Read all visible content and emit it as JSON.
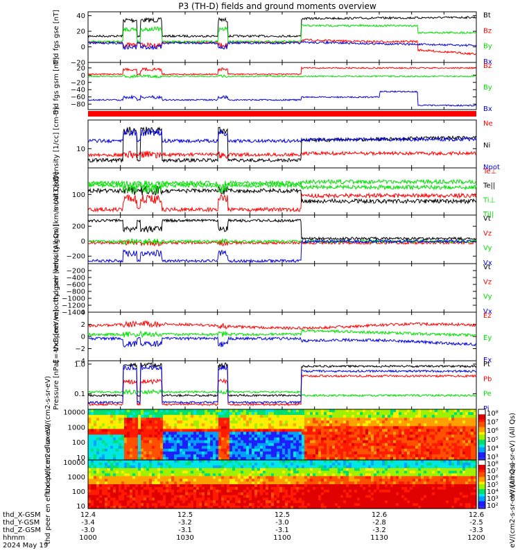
{
  "title": "P3 (TH-D) fields and ground moments overview",
  "colors": {
    "black": "#000000",
    "red": "#ff0000",
    "green": "#00e000",
    "blue": "#0000e0",
    "cyan": "#00ffff"
  },
  "footer": {
    "row_labels": [
      "thd_X-GSM",
      "thd_Y-GSM",
      "thd_Z-GSM",
      "hhmm",
      "2024 May 19"
    ],
    "columns": [
      {
        "x": "12.4",
        "y": "-3.4",
        "z": "-3.0",
        "hhmm": "1000"
      },
      {
        "x": "12.5",
        "y": "-3.2",
        "z": "-3.1",
        "hhmm": "1030"
      },
      {
        "x": "12.5",
        "y": "-3.0",
        "z": "-3.1",
        "hhmm": "1100"
      },
      {
        "x": "12.6",
        "y": "-2.8",
        "z": "-3.2",
        "hhmm": "1130"
      },
      {
        "x": "12.6",
        "y": "-2.5",
        "z": "-3.3",
        "hhmm": "1200"
      }
    ]
  },
  "chart_data": [
    {
      "type": "line",
      "ylabel": "thd fgs gse [nT]",
      "ylim": [
        -20,
        45
      ],
      "ticks": [
        "40",
        "20",
        "0",
        "−20"
      ],
      "tick_values": [
        40,
        20,
        0,
        -20
      ],
      "series": [
        {
          "name": "Bt",
          "color": "#000000"
        },
        {
          "name": "Bz",
          "color": "#ff0000"
        },
        {
          "name": "By",
          "color": "#00e000"
        },
        {
          "name": "Bx",
          "color": "#0000e0"
        }
      ]
    },
    {
      "type": "line",
      "ylabel": "thd fgs gsm [nT]",
      "ylim": [
        -95,
        35
      ],
      "ticks": [
        "20",
        "0",
        "−20",
        "−40",
        "−60",
        "−80"
      ],
      "tick_values": [
        20,
        0,
        -20,
        -40,
        -60,
        -80
      ],
      "series": [
        {
          "name": "Bz",
          "color": "#ff0000"
        },
        {
          "name": "By",
          "color": "#00e000"
        },
        {
          "name": "Bx",
          "color": "#0000e0"
        }
      ]
    },
    {
      "type": "line",
      "ylabel": "Density [1/cc] [cm-3]",
      "log": true,
      "ticks": [
        "10"
      ],
      "tick_values": [
        10
      ],
      "series": [
        {
          "name": "Ne",
          "color": "#ff0000"
        },
        {
          "name": "Ni",
          "color": "#000000"
        },
        {
          "name": "Npot",
          "color": "#0000e0"
        }
      ]
    },
    {
      "type": "line",
      "ylabel": "moat3 [eV]",
      "log": true,
      "ticks": [
        "100"
      ],
      "tick_values": [
        100
      ],
      "series": [
        {
          "name": "Te⊥",
          "color": "#ff0000"
        },
        {
          "name": "Te||",
          "color": "#000000"
        },
        {
          "name": "Ti⊥",
          "color": "#00e000"
        },
        {
          "name": "Ti||",
          "color": "#00e000"
        }
      ]
    },
    {
      "type": "line",
      "ylabel": "thd peir velocity gsm [km/s (All Qs)]",
      "ylim": [
        -300,
        350
      ],
      "ticks": [
        "200",
        "0",
        "−200"
      ],
      "tick_values": [
        200,
        0,
        -200
      ],
      "series": [
        {
          "name": "Vt",
          "color": "#000000"
        },
        {
          "name": "Vz",
          "color": "#ff0000"
        },
        {
          "name": "Vy",
          "color": "#00e000"
        },
        {
          "name": "Vx",
          "color": "#0000e0"
        }
      ]
    },
    {
      "type": "line",
      "ylabel": "thd peer velocity gsm [km/s (All Qs)]",
      "ylim": [
        -1400,
        0
      ],
      "ticks": [
        "−200",
        "−400",
        "−600",
        "−800",
        "−1000",
        "−1200",
        "−1400"
      ],
      "tick_values": [
        -200,
        -400,
        -600,
        -800,
        -1000,
        -1200,
        -1400
      ],
      "series": [
        {
          "name": "Vt",
          "color": "#000000"
        },
        {
          "name": "Vz",
          "color": "#ff0000"
        },
        {
          "name": "Vy",
          "color": "#00e000"
        },
        {
          "name": "Vx",
          "color": "#0000e0"
        }
      ]
    },
    {
      "type": "line",
      "ylabel": "E=-VxB [mV/m]",
      "ylim": [
        -4,
        4
      ],
      "ticks": [
        "4",
        "2",
        "0",
        "−2",
        "−4"
      ],
      "tick_values": [
        4,
        2,
        0,
        -2,
        -4
      ],
      "series": [
        {
          "name": "Ez",
          "color": "#ff0000"
        },
        {
          "name": "Ey",
          "color": "#00e000"
        },
        {
          "name": "Ex",
          "color": "#0000e0"
        }
      ]
    },
    {
      "type": "line",
      "ylabel": "Pressure [nPa]",
      "log": true,
      "ticks": [
        "1.0",
        "0.1"
      ],
      "tick_values": [
        1,
        0.1
      ],
      "series": [
        {
          "name": "Pt",
          "color": "#000000"
        },
        {
          "name": "Pb",
          "color": "#ff0000"
        },
        {
          "name": "Pe",
          "color": "#00e000"
        },
        {
          "name": "Pi",
          "color": "#0000e0"
        }
      ]
    },
    {
      "type": "heatmap",
      "ylabel": "thd peir en eflux eV/(cm2-s-sr-eV)",
      "ticks": [
        "10000",
        "1000",
        "100",
        "10"
      ],
      "tick_values": [
        10000,
        1000,
        100,
        10
      ],
      "colorbar": {
        "label": "eV/(cm2-s-sr-eV) (All Qs)",
        "ticks": [
          "10⁸",
          "10⁷",
          "10⁶",
          "10⁵",
          "10⁴",
          "10³"
        ]
      }
    },
    {
      "type": "heatmap",
      "ylabel": "thd peer en eflux eV/(cm2-s-sr-eV)",
      "ticks": [
        "10000",
        "1000",
        "100",
        "10"
      ],
      "tick_values": [
        10000,
        1000,
        100,
        10
      ],
      "colorbar": {
        "label": "eV/(cm2-s-sr-eV) (All Qs)",
        "ticks": [
          "10⁸",
          "10⁷",
          "10⁶",
          "10⁵",
          "10⁴",
          "10³",
          "10²"
        ]
      }
    }
  ]
}
